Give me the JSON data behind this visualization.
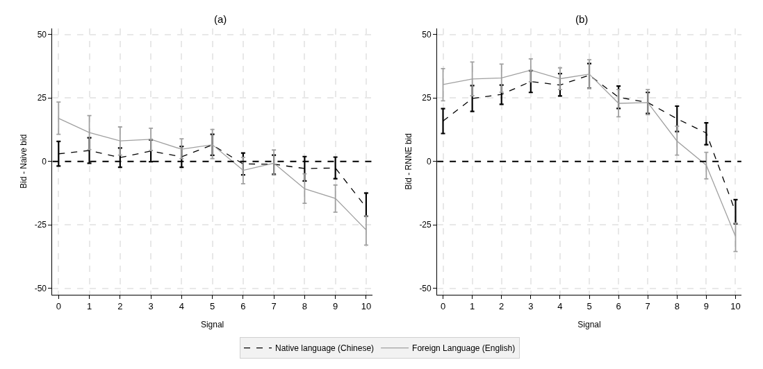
{
  "chart_data": [
    {
      "type": "line",
      "title": "(a)",
      "xlabel": "Signal",
      "ylabel": "Bid - Naive bid",
      "x": [
        0,
        1,
        2,
        3,
        4,
        5,
        6,
        7,
        8,
        9,
        10
      ],
      "xlim": [
        -0.2,
        10.2
      ],
      "xticks": [
        0,
        1,
        2,
        3,
        4,
        5,
        6,
        7,
        8,
        9,
        10
      ],
      "ylim": [
        -52.5,
        52.5
      ],
      "yticks": [
        -50,
        -25,
        0,
        25,
        50
      ],
      "grid": true,
      "legend": "bottom",
      "marker": "none",
      "series": [
        {
          "name": "Native language (Chinese)",
          "color": "#000000",
          "line_style": "dashed",
          "values": [
            3.0,
            4.3,
            1.5,
            4.1,
            1.8,
            6.5,
            -1.0,
            -1.1,
            -2.8,
            -2.6,
            -18.1
          ],
          "errors": [
            [
              -1.8,
              7.9
            ],
            [
              -0.7,
              9.3
            ],
            [
              -2.3,
              5.3
            ],
            [
              -0.1,
              8.5
            ],
            [
              -2.3,
              5.9
            ],
            [
              2.4,
              10.7
            ],
            [
              -5.3,
              3.3
            ],
            [
              -5.1,
              2.5
            ],
            [
              -7.7,
              1.9
            ],
            [
              -6.8,
              1.7
            ],
            [
              -21.6,
              -12.5
            ]
          ]
        },
        {
          "name": "Foreign Language (English)",
          "color": "#a0a0a0",
          "line_style": "solid",
          "values": [
            17.0,
            11.4,
            8.1,
            8.7,
            4.8,
            6.6,
            -3.5,
            -0.7,
            -10.8,
            -14.6,
            -27.0
          ],
          "errors": [
            [
              10.7,
              23.4
            ],
            [
              4.7,
              18.1
            ],
            [
              2.5,
              13.6
            ],
            [
              4.3,
              13.1
            ],
            [
              1.1,
              8.9
            ],
            [
              1.1,
              12.6
            ],
            [
              -8.8,
              1.6
            ],
            [
              -5.4,
              4.5
            ],
            [
              -16.5,
              -4.9
            ],
            [
              -20.0,
              -9.3
            ],
            [
              -33.0,
              -21.5
            ]
          ]
        }
      ],
      "ref_lines": [
        {
          "axis": "y",
          "value": 0,
          "color": "#000000",
          "line_style": "dashed"
        }
      ]
    },
    {
      "type": "line",
      "title": "(b)",
      "xlabel": "Signal",
      "ylabel": "Bid - RNNE bid",
      "x": [
        0,
        1,
        2,
        3,
        4,
        5,
        6,
        7,
        8,
        9,
        10
      ],
      "xlim": [
        -0.2,
        10.2
      ],
      "xticks": [
        0,
        1,
        2,
        3,
        4,
        5,
        6,
        7,
        8,
        9,
        10
      ],
      "ylim": [
        -52.5,
        52.5
      ],
      "yticks": [
        -50,
        -25,
        0,
        25,
        50
      ],
      "grid": true,
      "marker": "none",
      "series": [
        {
          "color": "#000000",
          "line_style": "dashed",
          "values": [
            15.9,
            24.8,
            26.4,
            31.5,
            30.1,
            34.0,
            25.3,
            23.2,
            16.8,
            11.2,
            -19.9
          ],
          "errors": [
            [
              11.0,
              20.8
            ],
            [
              19.7,
              29.9
            ],
            [
              22.5,
              30.1
            ],
            [
              27.2,
              35.8
            ],
            [
              25.8,
              34.6
            ],
            [
              28.9,
              38.6
            ],
            [
              20.9,
              29.7
            ],
            [
              18.9,
              27.2
            ],
            [
              11.8,
              21.8
            ],
            [
              6.6,
              15.2
            ],
            [
              -24.6,
              -15.1
            ]
          ]
        },
        {
          "color": "#a0a0a0",
          "line_style": "solid",
          "values": [
            30.3,
            32.5,
            32.9,
            36.0,
            32.6,
            34.4,
            22.9,
            23.2,
            8.0,
            -1.5,
            -29.6
          ],
          "errors": [
            [
              23.9,
              36.6
            ],
            [
              25.9,
              39.2
            ],
            [
              27.3,
              38.4
            ],
            [
              31.4,
              40.4
            ],
            [
              28.3,
              36.9
            ],
            [
              28.8,
              40.1
            ],
            [
              17.6,
              28.3
            ],
            [
              18.4,
              28.3
            ],
            [
              2.5,
              13.9
            ],
            [
              -6.9,
              3.6
            ],
            [
              -35.5,
              -24.3
            ]
          ]
        }
      ],
      "ref_lines": [
        {
          "axis": "y",
          "value": 0,
          "color": "#000000",
          "line_style": "dashed"
        }
      ]
    }
  ]
}
